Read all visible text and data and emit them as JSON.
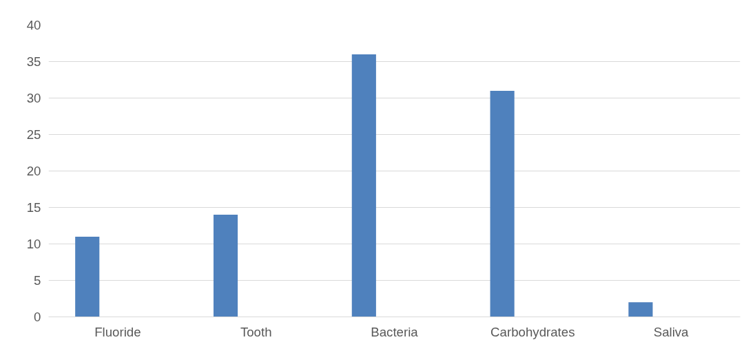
{
  "chart_data": {
    "type": "bar",
    "categories": [
      "Fluoride",
      "Tooth",
      "Bacteria",
      "Carbohydrates",
      "Saliva"
    ],
    "series": [
      {
        "color": "#4f81bd",
        "values": [
          11,
          14,
          36,
          31,
          2
        ]
      }
    ],
    "ylim": [
      0,
      40
    ],
    "yticks": [
      0,
      5,
      10,
      15,
      20,
      25,
      30,
      35,
      40
    ],
    "grid": "y"
  }
}
